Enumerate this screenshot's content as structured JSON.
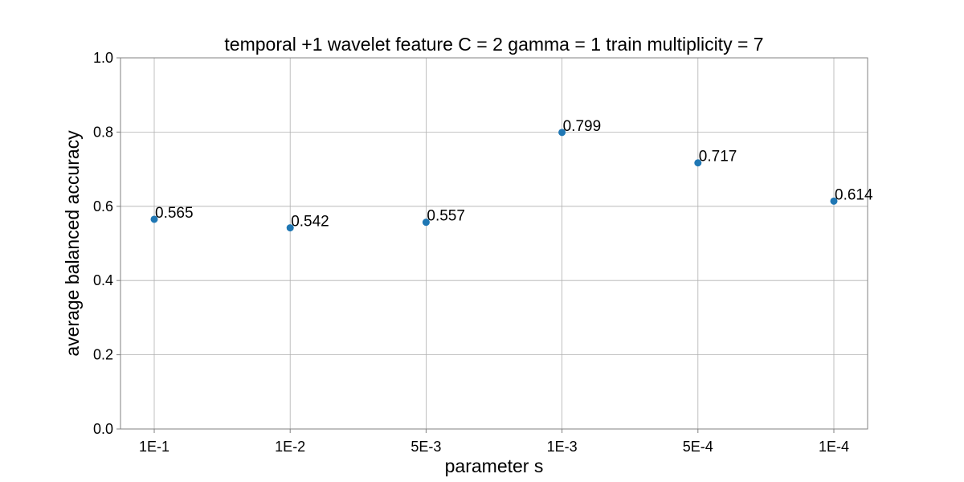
{
  "chart_data": {
    "type": "scatter",
    "title": "temporal +1 wavelet feature C = 2 gamma = 1 train multiplicity = 7",
    "xlabel": "parameter s",
    "ylabel": "average balanced accuracy",
    "categories": [
      "1E-1",
      "1E-2",
      "5E-3",
      "1E-3",
      "5E-4",
      "1E-4"
    ],
    "values": [
      0.565,
      0.542,
      0.557,
      0.799,
      0.717,
      0.614
    ],
    "data_labels": [
      "0.565",
      "0.542",
      "0.557",
      "0.799",
      "0.717",
      "0.614"
    ],
    "ylim": [
      0.0,
      1.0
    ],
    "yticks": [
      0.0,
      0.2,
      0.4,
      0.6,
      0.8,
      1.0
    ],
    "ytick_labels": [
      "0.0",
      "0.2",
      "0.4",
      "0.6",
      "0.8",
      "1.0"
    ],
    "grid": true,
    "marker_color": "#1f77b4"
  }
}
